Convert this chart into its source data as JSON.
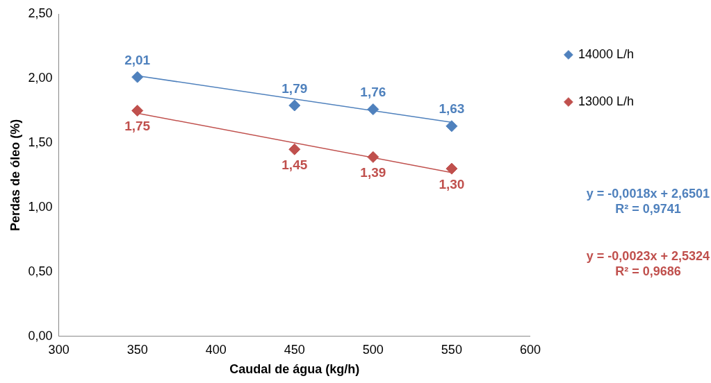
{
  "chart_data": {
    "type": "scatter",
    "xlabel": "Caudal de água (kg/h)",
    "ylabel": "Perdas de óleo (%)",
    "xlim": [
      300,
      600
    ],
    "xticks": [
      300,
      350,
      400,
      450,
      500,
      550,
      600
    ],
    "ylim": [
      0,
      2.5
    ],
    "yticks": [
      {
        "value": 0,
        "label": "0,00"
      },
      {
        "value": 0.5,
        "label": "0,50"
      },
      {
        "value": 1,
        "label": "1,00"
      },
      {
        "value": 1.5,
        "label": "1,50"
      },
      {
        "value": 2,
        "label": "2,00"
      },
      {
        "value": 2.5,
        "label": "2,50"
      }
    ],
    "grid": false,
    "legend": "right",
    "series": [
      {
        "name": "14000 L/h",
        "color": "#4f81bd",
        "marker": "diamond",
        "x": [
          350,
          450,
          500,
          550
        ],
        "values": [
          2.01,
          1.79,
          1.76,
          1.63
        ],
        "value_labels": [
          "2,01",
          "1,79",
          "1,76",
          "1,63"
        ]
      },
      {
        "name": "13000 L/h",
        "color": "#c0504d",
        "marker": "diamond",
        "x": [
          350,
          450,
          500,
          550
        ],
        "values": [
          1.75,
          1.45,
          1.39,
          1.3
        ],
        "value_labels": [
          "1,75",
          "1,45",
          "1,39",
          "1,30"
        ]
      },
      {
        "type": "line",
        "color": "#4f81bd",
        "marker": "none",
        "x": [
          350,
          550
        ],
        "values": [
          2.02,
          1.66
        ]
      },
      {
        "type": "line",
        "color": "#c0504d",
        "marker": "none",
        "x": [
          350,
          550
        ],
        "values": [
          1.73,
          1.27
        ]
      }
    ],
    "annotations": [
      "y = -0,0018x + 2,6501\nR² = 0,9741",
      "y = -0,0023x + 2,5324\nR² = 0,9686"
    ]
  }
}
